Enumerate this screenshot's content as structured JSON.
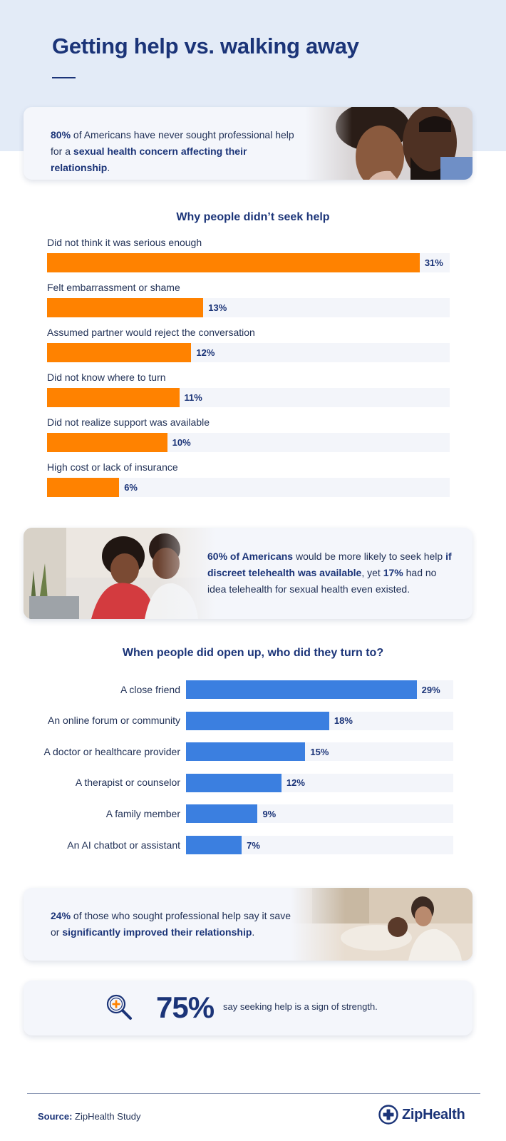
{
  "title": "Getting help vs. walking away",
  "callout_1": {
    "highlight": "80%",
    "text_a": " of Americans have never sought professional help for a ",
    "bold": "sexual health concern affecting their relationship",
    "text_b": "."
  },
  "callout_2": {
    "bold_a": "60% of Americans",
    "text_a": " would be more likely to seek help ",
    "bold_b": "if discreet telehealth was available",
    "text_b": ", yet ",
    "bold_c": "17%",
    "text_c": " had no idea telehealth for sexual health even existed."
  },
  "callout_3": {
    "highlight": "24%",
    "text_a": " of those who sought professional help say it saved or ",
    "bold": "significantly improved their relationship",
    "text_b": "."
  },
  "strength": {
    "value": "75%",
    "text": "say seeking help is a sign of strength.",
    "icon": "magnifier-plus-icon"
  },
  "footer": {
    "source_label": "Source:",
    "source_text": " ZipHealth Study",
    "brand": "ZipHealth",
    "brand_icon": "medical-cross-icon"
  },
  "colors": {
    "navy": "#1b3478",
    "orange": "#ff8200",
    "blue": "#3b7fe0",
    "track": "#f3f5fa"
  },
  "chart_data": [
    {
      "type": "bar",
      "orientation": "horizontal",
      "title": "Why people didn’t seek help",
      "categories": [
        "Did not think it was serious enough",
        "Felt embarrassment or shame",
        "Assumed partner would reject the conversation",
        "Did not know where to turn",
        "Did not realize support was available",
        "High cost or lack of insurance"
      ],
      "values": [
        31,
        13,
        12,
        11,
        10,
        6
      ],
      "value_labels": [
        "31%",
        "13%",
        "12%",
        "11%",
        "10%",
        "6%"
      ],
      "unit": "%",
      "xlim": [
        0,
        33.5
      ],
      "color": "#ff8200",
      "grid": false
    },
    {
      "type": "bar",
      "orientation": "horizontal",
      "title": "When people did open up, who did they turn to?",
      "categories": [
        "A close friend",
        "An online forum or community",
        "A doctor or healthcare provider",
        "A therapist or counselor",
        "A family member",
        "An AI chatbot or assistant"
      ],
      "values": [
        29,
        18,
        15,
        12,
        9,
        7
      ],
      "value_labels": [
        "29%",
        "18%",
        "15%",
        "12%",
        "9%",
        "7%"
      ],
      "unit": "%",
      "xlim": [
        0,
        33.6
      ],
      "color": "#3b7fe0",
      "grid": false
    }
  ]
}
